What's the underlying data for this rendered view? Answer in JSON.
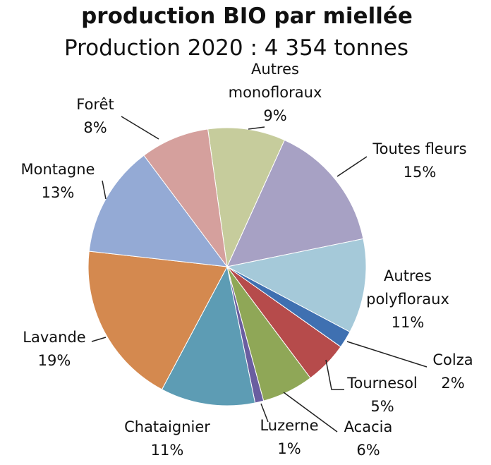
{
  "chart_data": {
    "type": "pie",
    "title": "production BIO par miellée",
    "subtitle": "Production 2020 : 4 354 tonnes",
    "categories": [
      "Autres monofloraux",
      "Toutes fleurs",
      "Autres polyfloraux",
      "Colza",
      "Tournesol",
      "Acacia",
      "Luzerne",
      "Chataignier",
      "Lavande",
      "Montagne",
      "Forêt"
    ],
    "values": [
      9,
      15,
      11,
      2,
      5,
      6,
      1,
      11,
      19,
      13,
      8
    ],
    "value_labels": [
      "9%",
      "15%",
      "11%",
      "2%",
      "5%",
      "6%",
      "1%",
      "11%",
      "19%",
      "13%",
      "8%"
    ],
    "colors": [
      "#c6cc9c",
      "#a7a1c4",
      "#a5c9d9",
      "#3f70b1",
      "#b64b4b",
      "#8fa757",
      "#6a5ea0",
      "#5d9cb4",
      "#d4894f",
      "#94aad5",
      "#d5a09d"
    ]
  }
}
